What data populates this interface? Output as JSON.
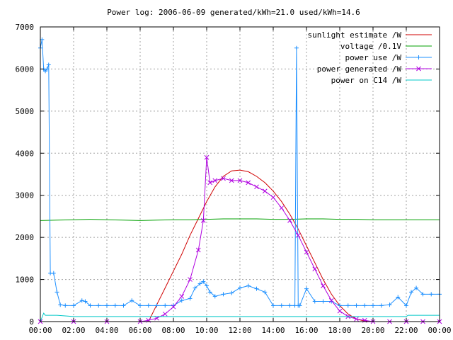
{
  "chart_data": {
    "type": "line",
    "title": "Power log: 2006-06-09 generated/kWh=21.0 used/kWh=14.6",
    "xlabel": "",
    "ylabel": "",
    "xlim": [
      0,
      24
    ],
    "ylim": [
      0,
      7000
    ],
    "grid": true,
    "legend_position": "top-right",
    "x_ticks": [
      "00:00",
      "02:00",
      "04:00",
      "06:00",
      "08:00",
      "10:00",
      "12:00",
      "14:00",
      "16:00",
      "18:00",
      "20:00",
      "22:00",
      "00:00"
    ],
    "y_ticks": [
      "0",
      "1000",
      "2000",
      "3000",
      "4000",
      "5000",
      "6000",
      "7000"
    ],
    "series": [
      {
        "name": "sunlight estimate /W",
        "color": "#d00000",
        "marker": "none",
        "x": [
          6.5,
          7,
          7.5,
          8,
          8.5,
          9,
          9.5,
          10,
          10.5,
          11,
          11.5,
          12,
          12.5,
          13,
          13.5,
          14,
          14.5,
          15,
          15.5,
          16,
          16.5,
          17,
          17.5,
          18,
          18.5,
          19,
          19.5,
          20
        ],
        "y": [
          0,
          400,
          800,
          1200,
          1600,
          2050,
          2450,
          2850,
          3200,
          3450,
          3580,
          3600,
          3560,
          3450,
          3300,
          3100,
          2850,
          2550,
          2200,
          1800,
          1400,
          1000,
          650,
          380,
          180,
          60,
          10,
          0
        ]
      },
      {
        "name": "voltage /0.1V",
        "color": "#00a000",
        "marker": "none",
        "x": [
          0,
          1,
          2,
          3,
          4,
          5,
          6,
          7,
          8,
          9,
          10,
          11,
          12,
          13,
          14,
          15,
          16,
          17,
          18,
          19,
          20,
          21,
          22,
          23,
          24
        ],
        "y": [
          2400,
          2410,
          2420,
          2430,
          2420,
          2410,
          2400,
          2410,
          2420,
          2420,
          2430,
          2440,
          2440,
          2440,
          2430,
          2430,
          2440,
          2440,
          2430,
          2430,
          2420,
          2420,
          2420,
          2420,
          2420
        ]
      },
      {
        "name": "power use /W",
        "color": "#1e90ff",
        "marker": "plus",
        "x": [
          0,
          0.1,
          0.2,
          0.3,
          0.4,
          0.5,
          0.6,
          0.8,
          1.0,
          1.2,
          1.5,
          2.0,
          2.5,
          2.7,
          3.0,
          3.5,
          4.0,
          4.5,
          5.0,
          5.5,
          6.0,
          6.5,
          7.0,
          7.5,
          8.0,
          8.5,
          9.0,
          9.3,
          9.6,
          9.8,
          10.0,
          10.2,
          10.5,
          11.0,
          11.5,
          12.0,
          12.5,
          13.0,
          13.5,
          14.0,
          14.5,
          15.0,
          15.3,
          15.4,
          15.5,
          15.6,
          16.0,
          16.5,
          17.0,
          17.5,
          18.0,
          18.5,
          19.0,
          19.5,
          20.0,
          20.5,
          21.0,
          21.5,
          22.0,
          22.3,
          22.6,
          23.0,
          23.5,
          24.0
        ],
        "y": [
          6500,
          6700,
          6000,
          5950,
          6000,
          6100,
          1150,
          1150,
          700,
          400,
          380,
          380,
          500,
          480,
          380,
          380,
          380,
          380,
          380,
          500,
          380,
          380,
          380,
          380,
          380,
          500,
          550,
          800,
          900,
          950,
          850,
          700,
          600,
          650,
          680,
          800,
          850,
          780,
          700,
          380,
          380,
          380,
          380,
          6500,
          380,
          380,
          780,
          480,
          480,
          480,
          380,
          380,
          380,
          380,
          380,
          380,
          400,
          580,
          380,
          700,
          800,
          650,
          650,
          650
        ]
      },
      {
        "name": "power generated /W",
        "color": "#b000e0",
        "marker": "cross",
        "x": [
          0,
          2,
          4,
          6,
          6.5,
          7,
          7.5,
          8,
          8.5,
          9,
          9.5,
          9.8,
          10.0,
          10.2,
          10.5,
          11,
          11.5,
          12,
          12.5,
          13,
          13.5,
          14,
          14.5,
          15,
          15.5,
          16,
          16.5,
          17,
          17.5,
          18,
          18.5,
          19,
          19.5,
          20,
          21,
          22,
          23,
          24
        ],
        "y": [
          0,
          0,
          0,
          0,
          30,
          80,
          180,
          350,
          600,
          1000,
          1700,
          2400,
          3900,
          3300,
          3350,
          3400,
          3350,
          3350,
          3300,
          3200,
          3100,
          2950,
          2700,
          2400,
          2050,
          1650,
          1250,
          850,
          500,
          250,
          120,
          60,
          30,
          0,
          0,
          0,
          0,
          0
        ]
      },
      {
        "name": "power on C14 /W",
        "color": "#00c8c8",
        "marker": "none",
        "x": [
          0,
          0.2,
          0.3,
          1.0,
          2.0,
          4.0,
          6.0,
          8.0,
          10.0,
          12.0,
          14.0,
          16.0,
          18.0,
          20.0,
          21.0,
          22.0,
          22.1,
          23.0,
          24.0
        ],
        "y": [
          0,
          200,
          150,
          150,
          120,
          120,
          120,
          120,
          120,
          120,
          120,
          120,
          120,
          120,
          120,
          120,
          150,
          150,
          150
        ]
      }
    ]
  }
}
